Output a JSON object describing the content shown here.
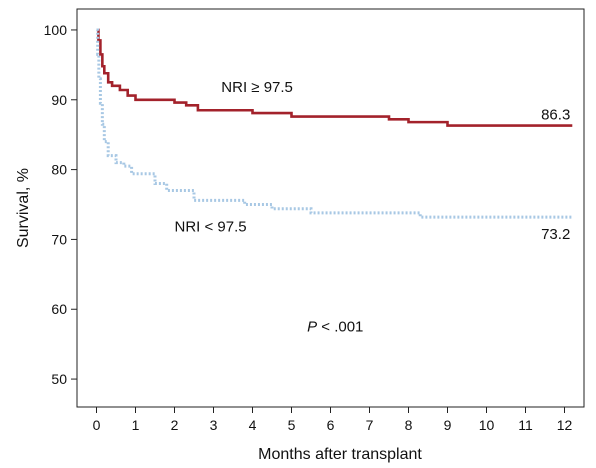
{
  "chart_data": {
    "type": "line",
    "title": "",
    "xlabel": "Months after transplant",
    "ylabel": "Survival, %",
    "xlim": [
      -0.5,
      12.5
    ],
    "ylim": [
      46,
      103
    ],
    "xticks": [
      0,
      1,
      2,
      3,
      4,
      5,
      6,
      7,
      8,
      9,
      10,
      11,
      12
    ],
    "yticks": [
      50,
      60,
      70,
      80,
      90,
      100
    ],
    "grid": false,
    "legend": "none",
    "series": [
      {
        "name": "NRI ≥ 97.5",
        "color": "#a3222b",
        "style": "solid",
        "step": true,
        "x": [
          0,
          0.05,
          0.1,
          0.15,
          0.2,
          0.3,
          0.4,
          0.6,
          0.8,
          1.0,
          2.0,
          2.3,
          2.6,
          4.0,
          5.0,
          7.5,
          8.0,
          9.0,
          12.2
        ],
        "y": [
          100,
          98.5,
          96.5,
          94.8,
          93.8,
          92.5,
          92.0,
          91.4,
          90.6,
          90.0,
          89.6,
          89.2,
          88.5,
          88.1,
          87.6,
          87.2,
          86.8,
          86.3,
          86.3
        ],
        "end_label": "86.3"
      },
      {
        "name": "NRI < 97.5",
        "color": "#a8c8e4",
        "style": "dotted",
        "step": true,
        "x": [
          0,
          0.03,
          0.06,
          0.1,
          0.15,
          0.2,
          0.3,
          0.5,
          0.7,
          0.9,
          1.5,
          1.8,
          2.5,
          3.0,
          3.8,
          4.5,
          5.5,
          8.3,
          12.2
        ],
        "y": [
          100,
          96.5,
          93.0,
          89.5,
          86.5,
          84.0,
          82.0,
          81.0,
          80.5,
          79.4,
          78.0,
          77.0,
          75.6,
          75.6,
          75.0,
          74.4,
          73.8,
          73.2,
          73.2
        ],
        "end_label": "73.2"
      }
    ],
    "annotations": [
      {
        "text": "NRI ≥ 97.5",
        "x": 3.2,
        "y": 91.1
      },
      {
        "text": "NRI < 97.5",
        "x": 2.0,
        "y": 71.1
      },
      {
        "text_italic": "P",
        "text": " < .001",
        "x": 5.4,
        "y": 56.8
      }
    ]
  }
}
